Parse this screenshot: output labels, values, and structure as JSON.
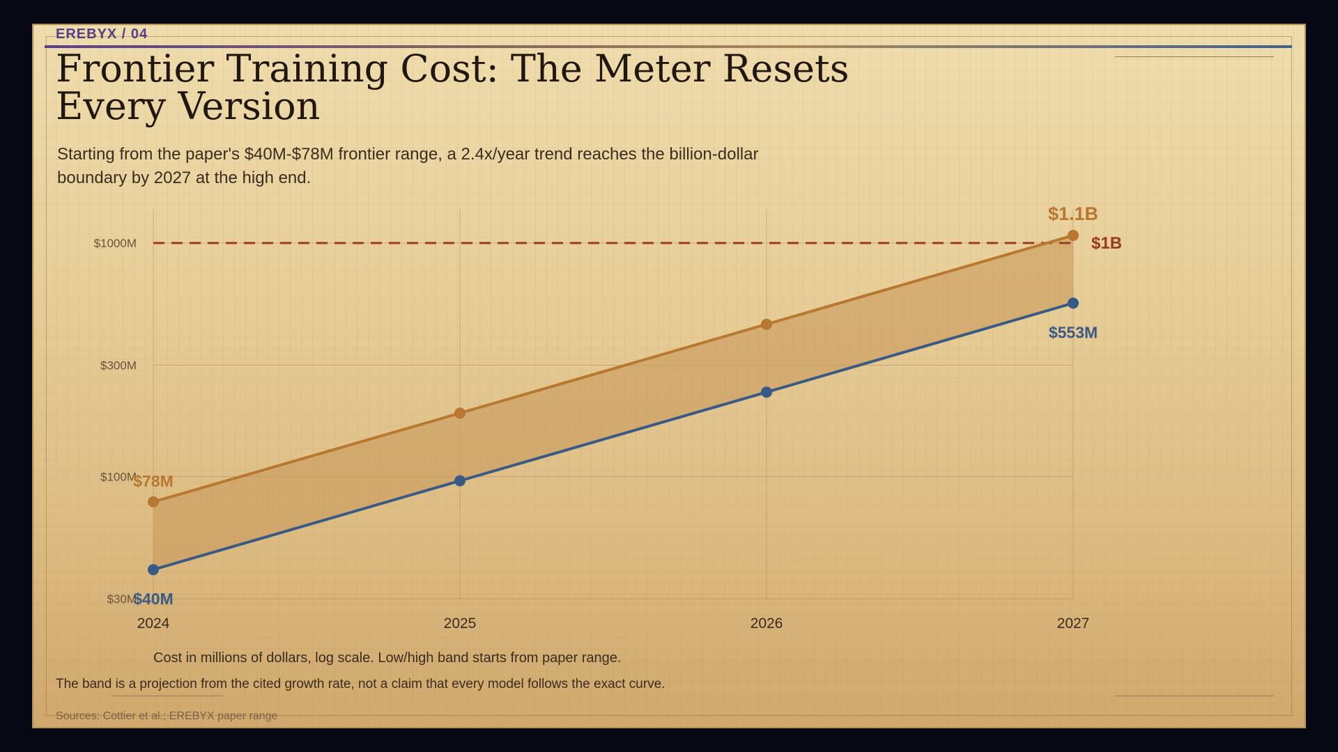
{
  "kicker": "EREBYX / 04",
  "title": "Frontier Training Cost: The Meter Resets Every Version",
  "subtitle": "Starting from the paper's $40M-$78M frontier range, a 2.4x/year trend reaches the billion-dollar boundary by 2027 at the high end.",
  "axis_note": "Cost in millions of dollars, log scale. Low/high band starts from paper range.",
  "footnote": "The band is a projection from the cited growth rate, not a claim that every model follows the exact curve.",
  "sources": "Sources: Cottier et al.; EREBYX paper range",
  "colors": {
    "high": "#b8782f",
    "low": "#3a5a86",
    "threshold": "#9a3a1e",
    "band": "#c99a5c"
  },
  "chart_data": {
    "type": "line",
    "scale": "log",
    "x": [
      "2024",
      "2025",
      "2026",
      "2027"
    ],
    "y_ticks": [
      {
        "value": 30,
        "label": "$30M"
      },
      {
        "value": 100,
        "label": "$100M"
      },
      {
        "value": 300,
        "label": "$300M"
      },
      {
        "value": 1000,
        "label": "$1000M"
      }
    ],
    "ylim": [
      30,
      1400
    ],
    "grid": true,
    "series": [
      {
        "key": "high",
        "values": [
          78,
          187,
          449,
          1078
        ],
        "start_label": "$78M",
        "end_label": "$1.1B"
      },
      {
        "key": "low",
        "values": [
          40,
          96,
          230,
          553
        ],
        "start_label": "$40M",
        "end_label": "$553M"
      }
    ],
    "threshold": {
      "value": 1000,
      "label": "$1B"
    }
  }
}
